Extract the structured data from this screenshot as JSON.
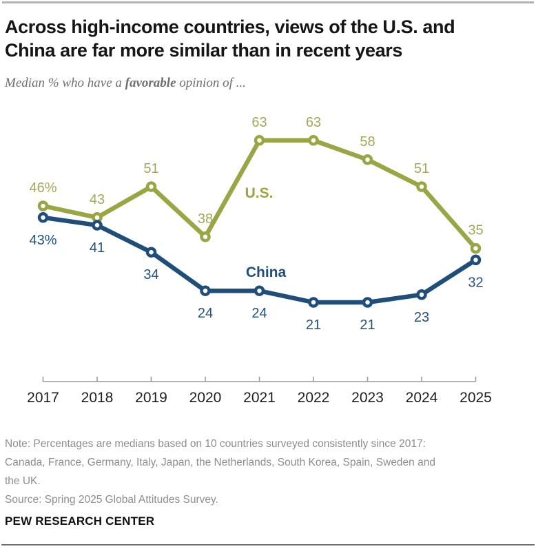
{
  "header": {
    "title": "Across high-income countries, views of the U.S. and\nChina are far more similar than in recent years",
    "subtitle_prefix": "Median % who have a ",
    "subtitle_bold": "favorable",
    "subtitle_suffix": " opinion of ..."
  },
  "chart_data": {
    "type": "line",
    "categories": [
      "2017",
      "2018",
      "2019",
      "2020",
      "2021",
      "2022",
      "2023",
      "2024",
      "2025"
    ],
    "series": [
      {
        "name": "U.S.",
        "color": "#9aa543",
        "label_color": "#a3a85a",
        "values": [
          46,
          43,
          51,
          38,
          63,
          63,
          58,
          51,
          35
        ],
        "point_labels": [
          "46%",
          "43",
          "51",
          "38",
          "63",
          "63",
          "58",
          "51",
          "35"
        ]
      },
      {
        "name": "China",
        "color": "#1f4e7a",
        "label_color": "#24517f",
        "values": [
          43,
          41,
          34,
          24,
          24,
          21,
          21,
          23,
          32
        ],
        "point_labels": [
          "43%",
          "41",
          "34",
          "24",
          "24",
          "21",
          "21",
          "23",
          "32"
        ]
      }
    ],
    "ylim": [
      0,
      70
    ],
    "grid": false,
    "legend": "inline-series-annotations",
    "axis_color": "#9a9a9a",
    "year_label_color": "#1d1d1d"
  },
  "notes": {
    "note": "Note: Percentages are medians based on 10 countries surveyed consistently since 2017:\nCanada, France, Germany, Italy, Japan, the Netherlands, South Korea, Spain, Sweden and\nthe UK.",
    "source": "Source: Spring 2025 Global Attitudes Survey.",
    "brand": "PEW RESEARCH CENTER"
  }
}
